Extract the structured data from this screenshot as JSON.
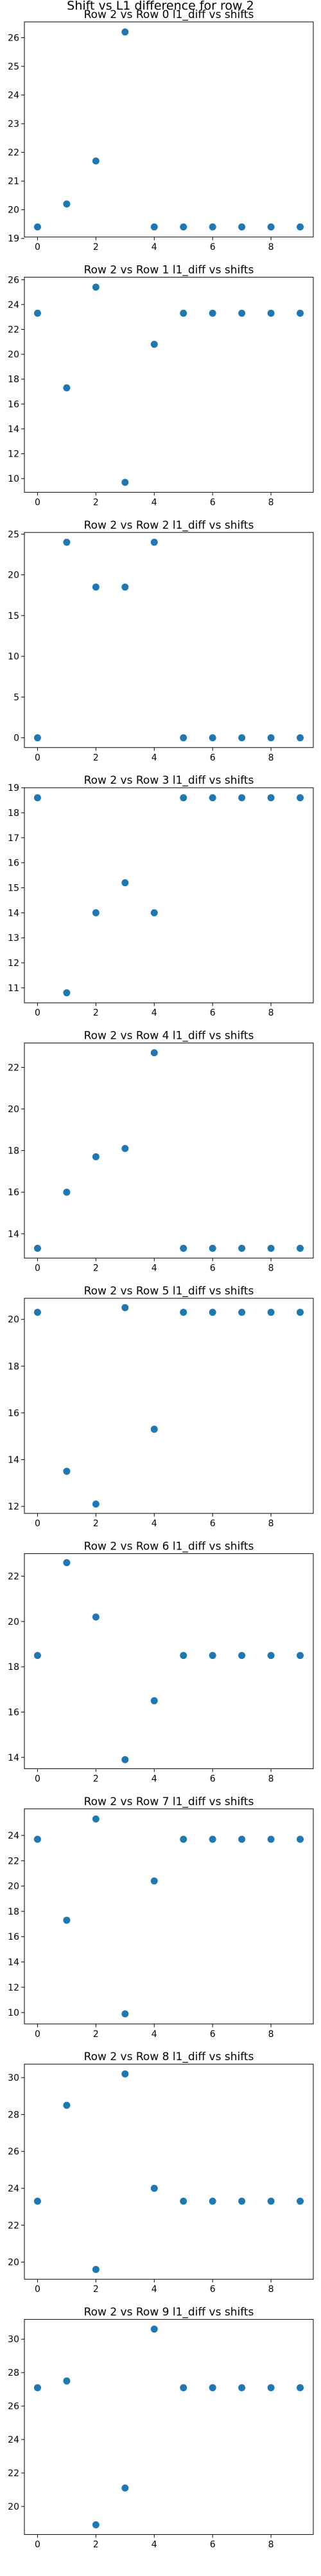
{
  "suptitle": "Shift vs L1 difference for row 2",
  "chart_data": [
    {
      "type": "scatter",
      "title": "Row 2 vs Row 0 l1_diff vs shifts",
      "x": [
        0,
        1,
        2,
        3,
        4,
        5,
        6,
        7,
        8,
        9
      ],
      "y": [
        19.4,
        20.2,
        21.7,
        26.2,
        19.4,
        19.4,
        19.4,
        19.4,
        19.4,
        19.4
      ],
      "xlim": [
        -0.45,
        9.45
      ],
      "ylim": [
        19.05,
        26.55
      ],
      "xticks": [
        0,
        2,
        4,
        6,
        8
      ],
      "yticks": [
        19,
        20,
        21,
        22,
        23,
        24,
        25,
        26
      ],
      "color": "#1f77b4"
    },
    {
      "type": "scatter",
      "title": "Row 2 vs Row 1 l1_diff vs shifts",
      "x": [
        0,
        1,
        2,
        3,
        4,
        5,
        6,
        7,
        8,
        9
      ],
      "y": [
        23.3,
        17.3,
        25.4,
        9.7,
        20.8,
        23.3,
        23.3,
        23.3,
        23.3,
        23.3
      ],
      "xlim": [
        -0.45,
        9.45
      ],
      "ylim": [
        8.9,
        26.2
      ],
      "xticks": [
        0,
        2,
        4,
        6,
        8
      ],
      "yticks": [
        10,
        12,
        14,
        16,
        18,
        20,
        22,
        24,
        26
      ],
      "color": "#1f77b4"
    },
    {
      "type": "scatter",
      "title": "Row 2 vs Row 2 l1_diff vs shifts",
      "x": [
        0,
        1,
        2,
        3,
        4,
        5,
        6,
        7,
        8,
        9
      ],
      "y": [
        0,
        24.0,
        18.5,
        18.5,
        24.0,
        0,
        0,
        0,
        0,
        0
      ],
      "xlim": [
        -0.45,
        9.45
      ],
      "ylim": [
        -1.2,
        25.2
      ],
      "xticks": [
        0,
        2,
        4,
        6,
        8
      ],
      "yticks": [
        0,
        5,
        10,
        15,
        20,
        25
      ],
      "color": "#1f77b4"
    },
    {
      "type": "scatter",
      "title": "Row 2 vs Row 3 l1_diff vs shifts",
      "x": [
        0,
        1,
        2,
        3,
        4,
        5,
        6,
        7,
        8,
        9
      ],
      "y": [
        18.6,
        10.8,
        14.0,
        15.2,
        14.0,
        18.6,
        18.6,
        18.6,
        18.6,
        18.6
      ],
      "xlim": [
        -0.45,
        9.45
      ],
      "ylim": [
        10.4,
        19.0
      ],
      "xticks": [
        0,
        2,
        4,
        6,
        8
      ],
      "yticks": [
        11,
        12,
        13,
        14,
        15,
        16,
        17,
        18,
        19
      ],
      "color": "#1f77b4"
    },
    {
      "type": "scatter",
      "title": "Row 2 vs Row 4 l1_diff vs shifts",
      "x": [
        0,
        1,
        2,
        3,
        4,
        5,
        6,
        7,
        8,
        9
      ],
      "y": [
        13.3,
        16.0,
        17.7,
        18.1,
        22.7,
        13.3,
        13.3,
        13.3,
        13.3,
        13.3
      ],
      "xlim": [
        -0.45,
        9.45
      ],
      "ylim": [
        12.83,
        23.17
      ],
      "xticks": [
        0,
        2,
        4,
        6,
        8
      ],
      "yticks": [
        14,
        16,
        18,
        20,
        22
      ],
      "color": "#1f77b4"
    },
    {
      "type": "scatter",
      "title": "Row 2 vs Row 5 l1_diff vs shifts",
      "x": [
        0,
        1,
        2,
        3,
        4,
        5,
        6,
        7,
        8,
        9
      ],
      "y": [
        20.3,
        13.5,
        12.1,
        20.5,
        15.3,
        20.3,
        20.3,
        20.3,
        20.3,
        20.3
      ],
      "xlim": [
        -0.45,
        9.45
      ],
      "ylim": [
        11.7,
        20.9
      ],
      "xticks": [
        0,
        2,
        4,
        6,
        8
      ],
      "yticks": [
        12,
        14,
        16,
        18,
        20
      ],
      "color": "#1f77b4"
    },
    {
      "type": "scatter",
      "title": "Row 2 vs Row 6 l1_diff vs shifts",
      "x": [
        0,
        1,
        2,
        3,
        4,
        5,
        6,
        7,
        8,
        9
      ],
      "y": [
        18.5,
        22.6,
        20.2,
        13.9,
        16.5,
        18.5,
        18.5,
        18.5,
        18.5,
        18.5
      ],
      "xlim": [
        -0.45,
        9.45
      ],
      "ylim": [
        13.5,
        23.0
      ],
      "xticks": [
        0,
        2,
        4,
        6,
        8
      ],
      "yticks": [
        14,
        16,
        18,
        20,
        22
      ],
      "color": "#1f77b4"
    },
    {
      "type": "scatter",
      "title": "Row 2 vs Row 7 l1_diff vs shifts",
      "x": [
        0,
        1,
        2,
        3,
        4,
        5,
        6,
        7,
        8,
        9
      ],
      "y": [
        23.7,
        17.3,
        25.3,
        9.9,
        20.4,
        23.7,
        23.7,
        23.7,
        23.7,
        23.7
      ],
      "xlim": [
        -0.45,
        9.45
      ],
      "ylim": [
        9.1,
        26.1
      ],
      "xticks": [
        0,
        2,
        4,
        6,
        8
      ],
      "yticks": [
        10,
        12,
        14,
        16,
        18,
        20,
        22,
        24
      ],
      "color": "#1f77b4"
    },
    {
      "type": "scatter",
      "title": "Row 2 vs Row 8 l1_diff vs shifts",
      "x": [
        0,
        1,
        2,
        3,
        4,
        5,
        6,
        7,
        8,
        9
      ],
      "y": [
        23.3,
        28.5,
        19.6,
        30.2,
        24.0,
        23.3,
        23.3,
        23.3,
        23.3,
        23.3
      ],
      "xlim": [
        -0.45,
        9.45
      ],
      "ylim": [
        19.07,
        30.73
      ],
      "xticks": [
        0,
        2,
        4,
        6,
        8
      ],
      "yticks": [
        20,
        22,
        24,
        26,
        28,
        30
      ],
      "color": "#1f77b4"
    },
    {
      "type": "scatter",
      "title": "Row 2 vs Row 9 l1_diff vs shifts",
      "x": [
        0,
        1,
        2,
        3,
        4,
        5,
        6,
        7,
        8,
        9
      ],
      "y": [
        27.1,
        27.5,
        18.9,
        21.1,
        30.6,
        27.1,
        27.1,
        27.1,
        27.1,
        27.1
      ],
      "xlim": [
        -0.45,
        9.45
      ],
      "ylim": [
        18.32,
        31.18
      ],
      "xticks": [
        0,
        2,
        4,
        6,
        8
      ],
      "yticks": [
        20,
        22,
        24,
        26,
        28,
        30
      ],
      "color": "#1f77b4"
    }
  ]
}
